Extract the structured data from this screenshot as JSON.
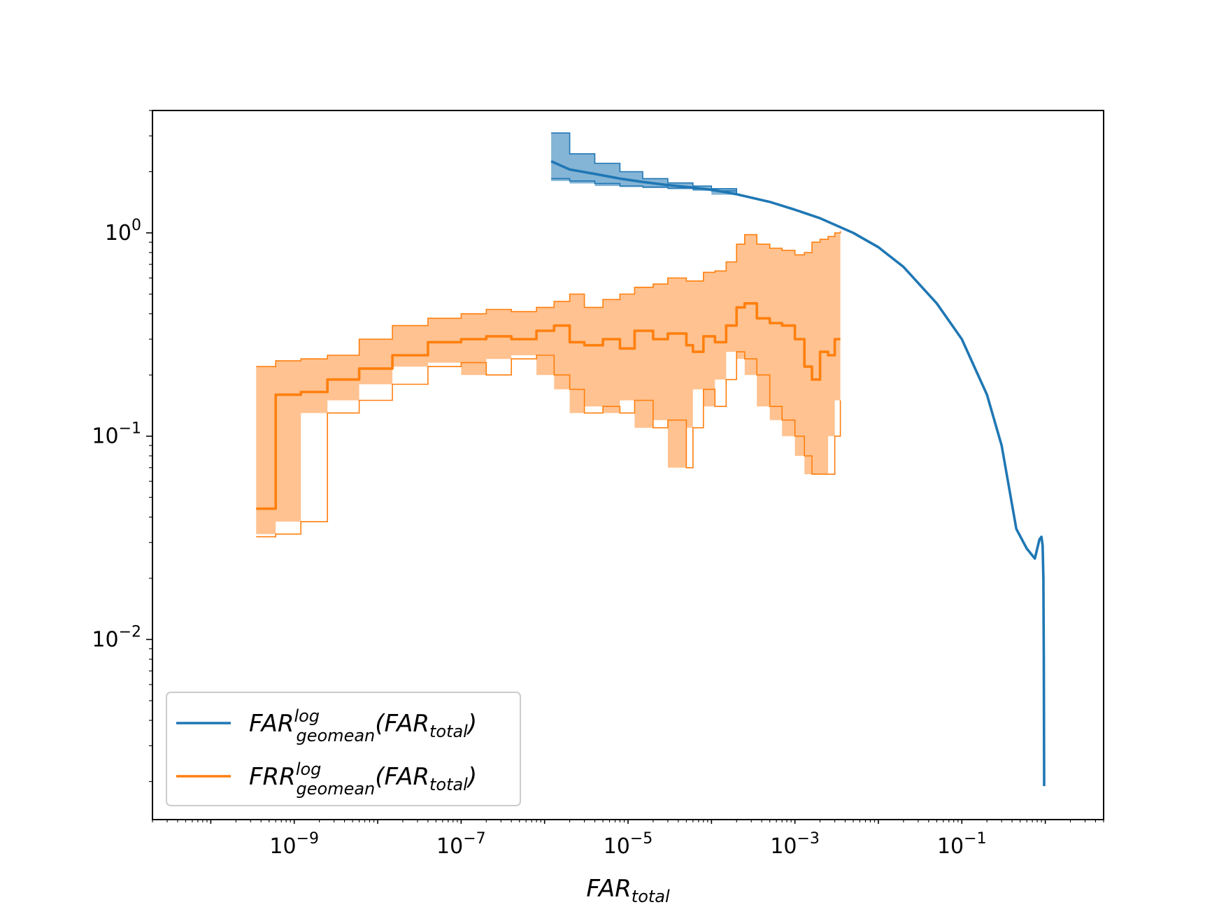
{
  "chart_data": {
    "type": "line",
    "title": "",
    "xscale": "log",
    "yscale": "log",
    "xlim": [
      2e-11,
      5
    ],
    "ylim": [
      0.0013,
      4.0
    ],
    "xlabel": {
      "base": "FAR",
      "sub": "total"
    },
    "ylabel": "",
    "grid": false,
    "legend_position": "lower-left",
    "x_ticks": [
      {
        "value": 1e-09,
        "base": "10",
        "exp": "−9"
      },
      {
        "value": 1e-07,
        "base": "10",
        "exp": "−7"
      },
      {
        "value": 1e-05,
        "base": "10",
        "exp": "−5"
      },
      {
        "value": 0.001,
        "base": "10",
        "exp": "−3"
      },
      {
        "value": 0.1,
        "base": "10",
        "exp": "−1"
      }
    ],
    "y_ticks": [
      {
        "value": 1,
        "base": "10",
        "exp": "0"
      },
      {
        "value": 0.1,
        "base": "10",
        "exp": "−1"
      },
      {
        "value": 0.01,
        "base": "10",
        "exp": "−2"
      }
    ],
    "series": [
      {
        "color": "#1f77b4",
        "band_color": "#1f77b4",
        "legend": {
          "main": "FAR",
          "sup": "log",
          "sub": "geomean",
          "arg_main": "FAR",
          "arg_sub": "total"
        },
        "x": [
          1.2e-06,
          2e-06,
          4e-06,
          8e-06,
          1.5e-05,
          3e-05,
          6e-05,
          0.0001,
          0.0002,
          0.0005,
          0.001,
          0.002,
          0.005,
          0.01,
          0.02,
          0.05,
          0.1,
          0.2,
          0.3,
          0.45,
          0.6,
          0.75,
          0.85,
          0.9,
          0.93,
          0.95,
          0.96,
          0.97
        ],
        "y": [
          2.25,
          2.05,
          1.95,
          1.85,
          1.78,
          1.72,
          1.67,
          1.63,
          1.55,
          1.42,
          1.3,
          1.18,
          1.0,
          0.85,
          0.68,
          0.45,
          0.3,
          0.16,
          0.09,
          0.035,
          0.028,
          0.025,
          0.031,
          0.032,
          0.029,
          0.02,
          0.008,
          0.0019
        ],
        "band_x": [
          1.2e-06,
          2e-06,
          4e-06,
          8e-06,
          1.5e-05,
          3e-05,
          6e-05,
          0.0001,
          0.0002
        ],
        "band_upper": [
          3.1,
          2.45,
          2.2,
          2.0,
          1.85,
          1.76,
          1.7,
          1.65,
          1.56
        ],
        "band_lower": [
          1.85,
          1.8,
          1.75,
          1.7,
          1.68,
          1.66,
          1.64,
          1.61,
          1.54
        ]
      },
      {
        "color": "#ff7f0e",
        "band_color": "#ffbb84",
        "legend": {
          "main": "FRR",
          "sup": "log",
          "sub": "geomean",
          "arg_main": "FAR",
          "arg_sub": "total"
        },
        "x": [
          3.5e-10,
          6e-10,
          6e-10,
          1.2e-09,
          2.5e-09,
          6e-09,
          1.5e-08,
          4e-08,
          1e-07,
          2e-07,
          4e-07,
          8e-07,
          1.3e-06,
          2e-06,
          3e-06,
          5e-06,
          8e-06,
          1.2e-05,
          2e-05,
          3e-05,
          5e-05,
          6e-05,
          8e-05,
          0.00011,
          0.00015,
          0.0002,
          0.00025,
          0.00035,
          0.0005,
          0.0007,
          0.001,
          0.0013,
          0.0016,
          0.002,
          0.0025,
          0.003,
          0.0035
        ],
        "y": [
          0.044,
          0.044,
          0.16,
          0.165,
          0.19,
          0.215,
          0.25,
          0.29,
          0.3,
          0.31,
          0.3,
          0.33,
          0.35,
          0.29,
          0.28,
          0.3,
          0.27,
          0.33,
          0.3,
          0.32,
          0.28,
          0.26,
          0.31,
          0.29,
          0.35,
          0.43,
          0.45,
          0.38,
          0.36,
          0.35,
          0.3,
          0.22,
          0.19,
          0.26,
          0.25,
          0.3,
          0.3
        ],
        "band_x": [
          3.5e-10,
          6e-10,
          1.2e-09,
          2.5e-09,
          6e-09,
          1.5e-08,
          4e-08,
          1e-07,
          2e-07,
          4e-07,
          8e-07,
          1.3e-06,
          2e-06,
          3e-06,
          5e-06,
          8e-06,
          1.2e-05,
          2e-05,
          3e-05,
          5e-05,
          6e-05,
          8e-05,
          0.00011,
          0.00015,
          0.0002,
          0.00025,
          0.00035,
          0.0005,
          0.0007,
          0.001,
          0.0013,
          0.0016,
          0.002,
          0.0025,
          0.003,
          0.0035
        ],
        "band_upper": [
          0.22,
          0.235,
          0.24,
          0.25,
          0.3,
          0.35,
          0.38,
          0.4,
          0.42,
          0.41,
          0.43,
          0.46,
          0.5,
          0.43,
          0.47,
          0.5,
          0.54,
          0.56,
          0.6,
          0.58,
          0.58,
          0.64,
          0.65,
          0.72,
          0.88,
          0.98,
          0.88,
          0.84,
          0.82,
          0.78,
          0.8,
          0.9,
          0.93,
          0.96,
          1.0,
          1.02
        ],
        "band_lower": [
          0.032,
          0.033,
          0.038,
          0.13,
          0.15,
          0.18,
          0.22,
          0.23,
          0.2,
          0.24,
          0.25,
          0.2,
          0.17,
          0.13,
          0.14,
          0.13,
          0.15,
          0.11,
          0.12,
          0.07,
          0.11,
          0.17,
          0.14,
          0.19,
          0.26,
          0.24,
          0.2,
          0.14,
          0.12,
          0.1,
          0.08,
          0.065,
          0.065,
          0.065,
          0.1,
          0.15
        ]
      }
    ]
  }
}
